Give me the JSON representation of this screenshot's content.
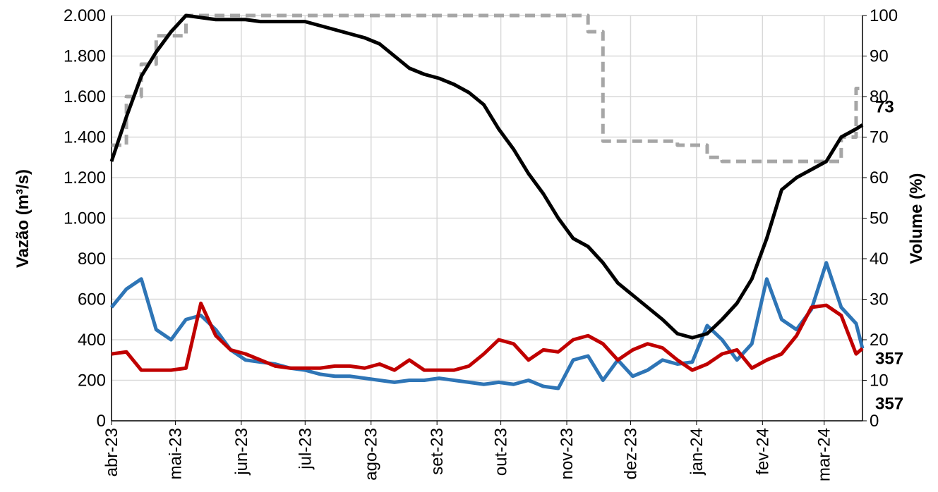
{
  "chart_data": {
    "type": "line",
    "y_label": "Vazão (m³/s)",
    "y2_label": "Volume (%)",
    "x": [
      0,
      7,
      14,
      21,
      28,
      35,
      42,
      49,
      56,
      63,
      70,
      77,
      84,
      91,
      98,
      105,
      112,
      119,
      126,
      133,
      140,
      147,
      154,
      161,
      168,
      175,
      182,
      189,
      196,
      203,
      210,
      217,
      224,
      231,
      238,
      245,
      252,
      259,
      266,
      273,
      280,
      287,
      294,
      301,
      308,
      315,
      322,
      329,
      336,
      343,
      350,
      353
    ],
    "xlim": [
      0,
      353
    ],
    "xticks": [
      {
        "value": 0,
        "label": "abr-23"
      },
      {
        "value": 30,
        "label": "mai-23"
      },
      {
        "value": 61,
        "label": "jun-23"
      },
      {
        "value": 91,
        "label": "jul-23"
      },
      {
        "value": 122,
        "label": "ago-23"
      },
      {
        "value": 153,
        "label": "set-23"
      },
      {
        "value": 183,
        "label": "out-23"
      },
      {
        "value": 214,
        "label": "nov-23"
      },
      {
        "value": 244,
        "label": "dez-23"
      },
      {
        "value": 275,
        "label": "jan-24"
      },
      {
        "value": 306,
        "label": "fev-24"
      },
      {
        "value": 335,
        "label": "mar-24"
      }
    ],
    "ylim": [
      0,
      2000
    ],
    "yticks": [
      0,
      200,
      400,
      600,
      800,
      {
        "value": 1000,
        "label": "1.000"
      },
      {
        "value": 1200,
        "label": "1.200"
      },
      {
        "value": 1400,
        "label": "1.400"
      },
      {
        "value": 1600,
        "label": "1.600"
      },
      {
        "value": 1800,
        "label": "1.800"
      },
      {
        "value": 2000,
        "label": "2.000"
      }
    ],
    "y2lim": [
      0,
      100
    ],
    "y2ticks": [
      0,
      10,
      20,
      30,
      40,
      50,
      60,
      70,
      80,
      90,
      100
    ],
    "grid": true,
    "series": [
      {
        "color": "#2e75b6",
        "label_last": true,
        "values": [
          560,
          650,
          700,
          450,
          400,
          500,
          520,
          450,
          350,
          300,
          290,
          280,
          260,
          250,
          230,
          220,
          220,
          210,
          200,
          190,
          200,
          200,
          210,
          200,
          190,
          180,
          190,
          180,
          200,
          170,
          160,
          300,
          320,
          200,
          300,
          220,
          250,
          300,
          280,
          290,
          470,
          400,
          300,
          380,
          700,
          500,
          450,
          550,
          780,
          560,
          480,
          357
        ]
      },
      {
        "color": "#c00000",
        "label_last": true,
        "values": [
          330,
          340,
          250,
          250,
          250,
          260,
          580,
          420,
          350,
          330,
          300,
          270,
          260,
          260,
          260,
          270,
          270,
          260,
          280,
          250,
          300,
          250,
          250,
          250,
          270,
          330,
          400,
          380,
          300,
          350,
          340,
          400,
          420,
          380,
          300,
          350,
          380,
          360,
          300,
          250,
          280,
          330,
          350,
          260,
          300,
          330,
          420,
          560,
          570,
          520,
          330,
          357
        ]
      },
      {
        "color": "#000000",
        "axis": "y2",
        "label_last": true,
        "values": [
          64,
          75,
          85,
          91,
          96,
          100,
          99.5,
          99,
          99,
          99,
          98.5,
          98.5,
          98.5,
          98.5,
          97.5,
          96.5,
          95.5,
          94.5,
          93,
          90,
          87,
          85.5,
          84.5,
          83,
          81,
          78,
          72,
          67,
          61,
          56,
          50,
          45,
          43,
          39,
          34,
          31,
          28,
          25,
          21.5,
          20.5,
          21.5,
          25,
          29,
          35,
          45,
          57,
          60,
          62,
          64,
          70,
          72,
          73
        ]
      },
      {
        "color": "#a6a6a6",
        "axis": "y2",
        "dashed": true,
        "values": [
          68,
          80,
          88,
          95,
          95,
          100,
          100,
          100,
          100,
          100,
          100,
          100,
          100,
          100,
          100,
          100,
          100,
          100,
          100,
          100,
          100,
          100,
          100,
          100,
          100,
          100,
          100,
          100,
          100,
          100,
          100,
          100,
          96,
          69,
          69,
          69,
          69,
          69,
          68,
          68,
          65,
          64,
          64,
          64,
          64,
          64,
          64,
          64,
          64,
          70,
          82,
          82
        ]
      }
    ]
  }
}
